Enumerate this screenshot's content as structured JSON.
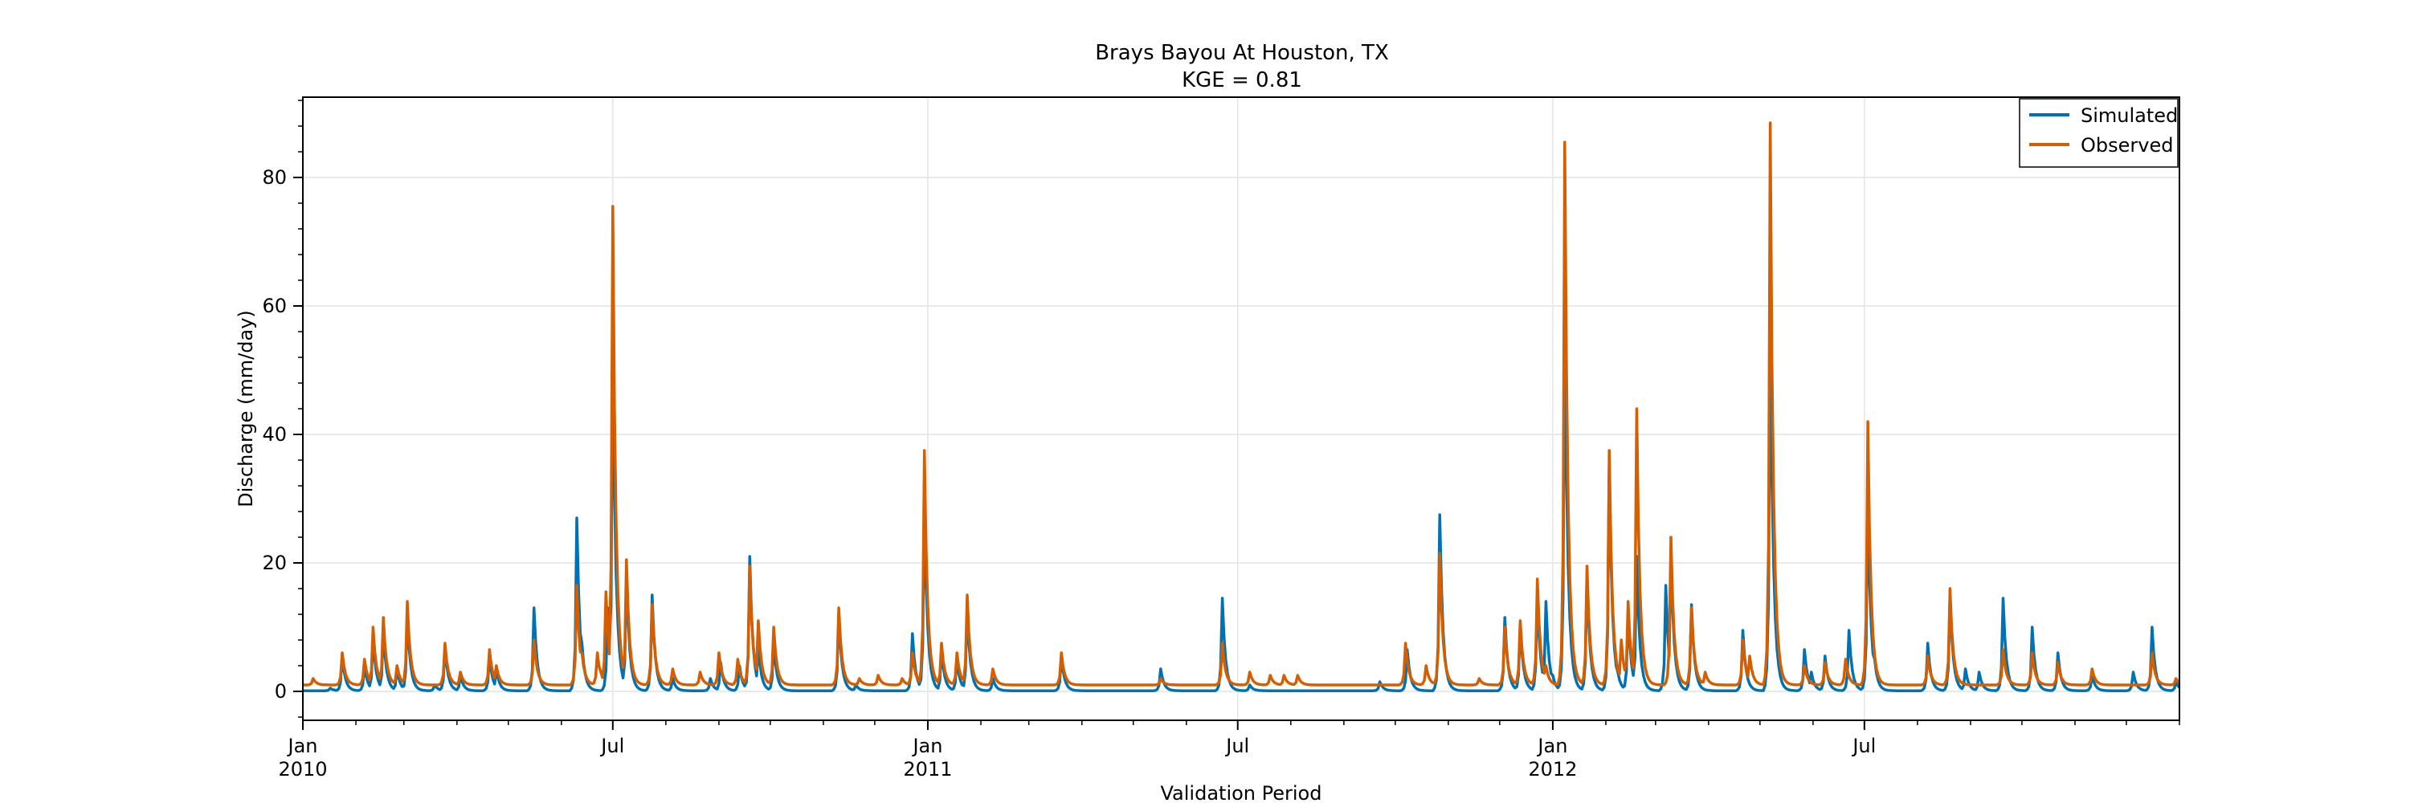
{
  "chart_data": {
    "type": "line",
    "title": "Brays Bayou At Houston, TX",
    "subtitle": "KGE = 0.81",
    "xlabel": "Validation Period",
    "ylabel": "Discharge (mm/day)",
    "xlim": [
      "2010-01-01",
      "2013-01-01"
    ],
    "ylim": [
      -4.5,
      92.5
    ],
    "y_ticks": [
      0,
      20,
      40,
      60,
      80
    ],
    "x_ticks": [
      {
        "date": "2010-01-01",
        "line1": "Jan",
        "line2": "2010"
      },
      {
        "date": "2010-07-01",
        "line1": "Jul",
        "line2": ""
      },
      {
        "date": "2011-01-01",
        "line1": "Jan",
        "line2": "2011"
      },
      {
        "date": "2011-07-01",
        "line1": "Jul",
        "line2": ""
      },
      {
        "date": "2012-01-01",
        "line1": "Jan",
        "line2": "2012"
      },
      {
        "date": "2012-07-01",
        "line1": "Jul",
        "line2": ""
      }
    ],
    "grid": true,
    "legend_position": "top-right",
    "series": [
      {
        "name": "Simulated",
        "color": "#0072B2",
        "baseline": 0.1,
        "peaks": [
          [
            "2010-01-17",
            0.5
          ],
          [
            "2010-01-24",
            5.5
          ],
          [
            "2010-02-06",
            4.0
          ],
          [
            "2010-02-11",
            8.5
          ],
          [
            "2010-02-17",
            9.5
          ],
          [
            "2010-02-25",
            3.5
          ],
          [
            "2010-03-03",
            12.0
          ],
          [
            "2010-03-19",
            1.0
          ],
          [
            "2010-03-25",
            7.0
          ],
          [
            "2010-04-03",
            2.5
          ],
          [
            "2010-04-20",
            5.5
          ],
          [
            "2010-04-24",
            3.5
          ],
          [
            "2010-05-16",
            13.0
          ],
          [
            "2010-06-10",
            27.0
          ],
          [
            "2010-06-13",
            7.5
          ],
          [
            "2010-06-28",
            13.0
          ],
          [
            "2010-07-04",
            7.0
          ],
          [
            "2010-07-06",
            2.0
          ],
          [
            "2010-07-01",
            54.0
          ],
          [
            "2010-07-09",
            18.5
          ],
          [
            "2010-07-24",
            15.0
          ],
          [
            "2010-08-05",
            2.0
          ],
          [
            "2010-08-27",
            2.0
          ],
          [
            "2010-09-02",
            4.5
          ],
          [
            "2010-09-13",
            4.0
          ],
          [
            "2010-09-19",
            21.0
          ],
          [
            "2010-09-24",
            7.0
          ],
          [
            "2010-10-03",
            7.5
          ],
          [
            "2010-11-10",
            12.0
          ],
          [
            "2010-11-20",
            1.0
          ],
          [
            "2010-12-23",
            9.0
          ],
          [
            "2010-12-30",
            29.0
          ],
          [
            "2011-01-03",
            2.5
          ],
          [
            "2011-01-09",
            6.5
          ],
          [
            "2011-01-18",
            5.0
          ],
          [
            "2011-01-24",
            13.0
          ],
          [
            "2011-02-08",
            2.0
          ],
          [
            "2011-03-20",
            5.5
          ],
          [
            "2011-05-17",
            3.5
          ],
          [
            "2011-06-22",
            14.5
          ],
          [
            "2011-07-08",
            1.0
          ],
          [
            "2011-09-22",
            1.5
          ],
          [
            "2011-10-08",
            6.5
          ],
          [
            "2011-10-27",
            27.5
          ],
          [
            "2011-12-04",
            11.5
          ],
          [
            "2011-12-13",
            10.5
          ],
          [
            "2011-12-23",
            15.0
          ],
          [
            "2011-12-28",
            14.0
          ],
          [
            "2012-01-01",
            2.5
          ],
          [
            "2012-01-08",
            58.0
          ],
          [
            "2012-01-21",
            18.0
          ],
          [
            "2012-02-03",
            35.0
          ],
          [
            "2012-02-08",
            3.0
          ],
          [
            "2012-02-14",
            12.5
          ],
          [
            "2012-02-19",
            21.0
          ],
          [
            "2012-03-07",
            16.5
          ],
          [
            "2012-03-10",
            22.0
          ],
          [
            "2012-03-22",
            13.5
          ],
          [
            "2012-04-21",
            9.5
          ],
          [
            "2012-05-07",
            58.0
          ],
          [
            "2012-05-27",
            6.5
          ],
          [
            "2012-05-31",
            3.0
          ],
          [
            "2012-06-08",
            5.5
          ],
          [
            "2012-06-22",
            9.5
          ],
          [
            "2012-07-03",
            30.0
          ],
          [
            "2012-07-07",
            5.0
          ],
          [
            "2012-08-07",
            7.5
          ],
          [
            "2012-08-20",
            15.0
          ],
          [
            "2012-08-29",
            3.5
          ],
          [
            "2012-09-06",
            3.0
          ],
          [
            "2012-09-20",
            14.5
          ],
          [
            "2012-10-07",
            10.0
          ],
          [
            "2012-10-22",
            6.0
          ],
          [
            "2012-11-11",
            2.5
          ],
          [
            "2012-12-05",
            3.0
          ],
          [
            "2012-12-16",
            10.0
          ],
          [
            "2012-12-30",
            1.5
          ]
        ]
      },
      {
        "name": "Observed",
        "color": "#D55E00",
        "baseline": 1.0,
        "peaks": [
          [
            "2010-01-07",
            2.0
          ],
          [
            "2010-01-24",
            6.0
          ],
          [
            "2010-02-06",
            5.0
          ],
          [
            "2010-02-11",
            10.0
          ],
          [
            "2010-02-17",
            11.5
          ],
          [
            "2010-02-25",
            4.0
          ],
          [
            "2010-03-03",
            14.0
          ],
          [
            "2010-03-25",
            7.5
          ],
          [
            "2010-04-03",
            3.0
          ],
          [
            "2010-04-20",
            6.5
          ],
          [
            "2010-04-24",
            4.0
          ],
          [
            "2010-05-16",
            8.0
          ],
          [
            "2010-06-10",
            16.5
          ],
          [
            "2010-06-13",
            6.0
          ],
          [
            "2010-06-24",
            3.0
          ],
          [
            "2010-06-27",
            15.5
          ],
          [
            "2010-06-22",
            6.0
          ],
          [
            "2010-07-01",
            75.5
          ],
          [
            "2010-07-09",
            20.5
          ],
          [
            "2010-07-24",
            13.5
          ],
          [
            "2010-08-05",
            3.5
          ],
          [
            "2010-08-21",
            3.0
          ],
          [
            "2010-09-01",
            6.0
          ],
          [
            "2010-09-12",
            5.0
          ],
          [
            "2010-09-19",
            19.5
          ],
          [
            "2010-09-24",
            11.0
          ],
          [
            "2010-10-03",
            10.0
          ],
          [
            "2010-11-10",
            13.0
          ],
          [
            "2010-11-22",
            2.0
          ],
          [
            "2010-12-03",
            2.5
          ],
          [
            "2010-12-17",
            2.0
          ],
          [
            "2010-12-23",
            6.0
          ],
          [
            "2010-12-30",
            37.5
          ],
          [
            "2011-01-09",
            7.5
          ],
          [
            "2011-01-18",
            6.0
          ],
          [
            "2011-01-24",
            15.0
          ],
          [
            "2011-02-08",
            3.5
          ],
          [
            "2011-03-20",
            6.0
          ],
          [
            "2011-05-17",
            2.0
          ],
          [
            "2011-06-22",
            7.5
          ],
          [
            "2011-07-08",
            3.0
          ],
          [
            "2011-07-20",
            2.5
          ],
          [
            "2011-07-28",
            2.5
          ],
          [
            "2011-08-05",
            2.5
          ],
          [
            "2011-10-07",
            7.5
          ],
          [
            "2011-10-27",
            21.5
          ],
          [
            "2011-10-19",
            4.0
          ],
          [
            "2011-11-19",
            2.0
          ],
          [
            "2011-12-04",
            10.0
          ],
          [
            "2011-12-13",
            11.0
          ],
          [
            "2011-12-23",
            17.5
          ],
          [
            "2011-12-28",
            4.0
          ],
          [
            "2012-01-08",
            85.5
          ],
          [
            "2012-01-21",
            19.5
          ],
          [
            "2012-02-03",
            37.5
          ],
          [
            "2012-02-10",
            8.0
          ],
          [
            "2012-02-14",
            14.0
          ],
          [
            "2012-02-19",
            44.0
          ],
          [
            "2012-03-10",
            24.0
          ],
          [
            "2012-03-22",
            13.0
          ],
          [
            "2012-03-30",
            3.0
          ],
          [
            "2012-04-21",
            8.0
          ],
          [
            "2012-04-25",
            5.5
          ],
          [
            "2012-05-07",
            88.5
          ],
          [
            "2012-05-27",
            4.0
          ],
          [
            "2012-06-08",
            4.5
          ],
          [
            "2012-06-20",
            5.0
          ],
          [
            "2012-07-03",
            42.0
          ],
          [
            "2012-08-07",
            5.5
          ],
          [
            "2012-08-20",
            16.0
          ],
          [
            "2012-09-20",
            6.5
          ],
          [
            "2012-10-07",
            6.0
          ],
          [
            "2012-10-22",
            4.5
          ],
          [
            "2012-11-11",
            3.5
          ],
          [
            "2012-12-16",
            6.0
          ],
          [
            "2012-12-30",
            2.0
          ]
        ]
      }
    ]
  }
}
